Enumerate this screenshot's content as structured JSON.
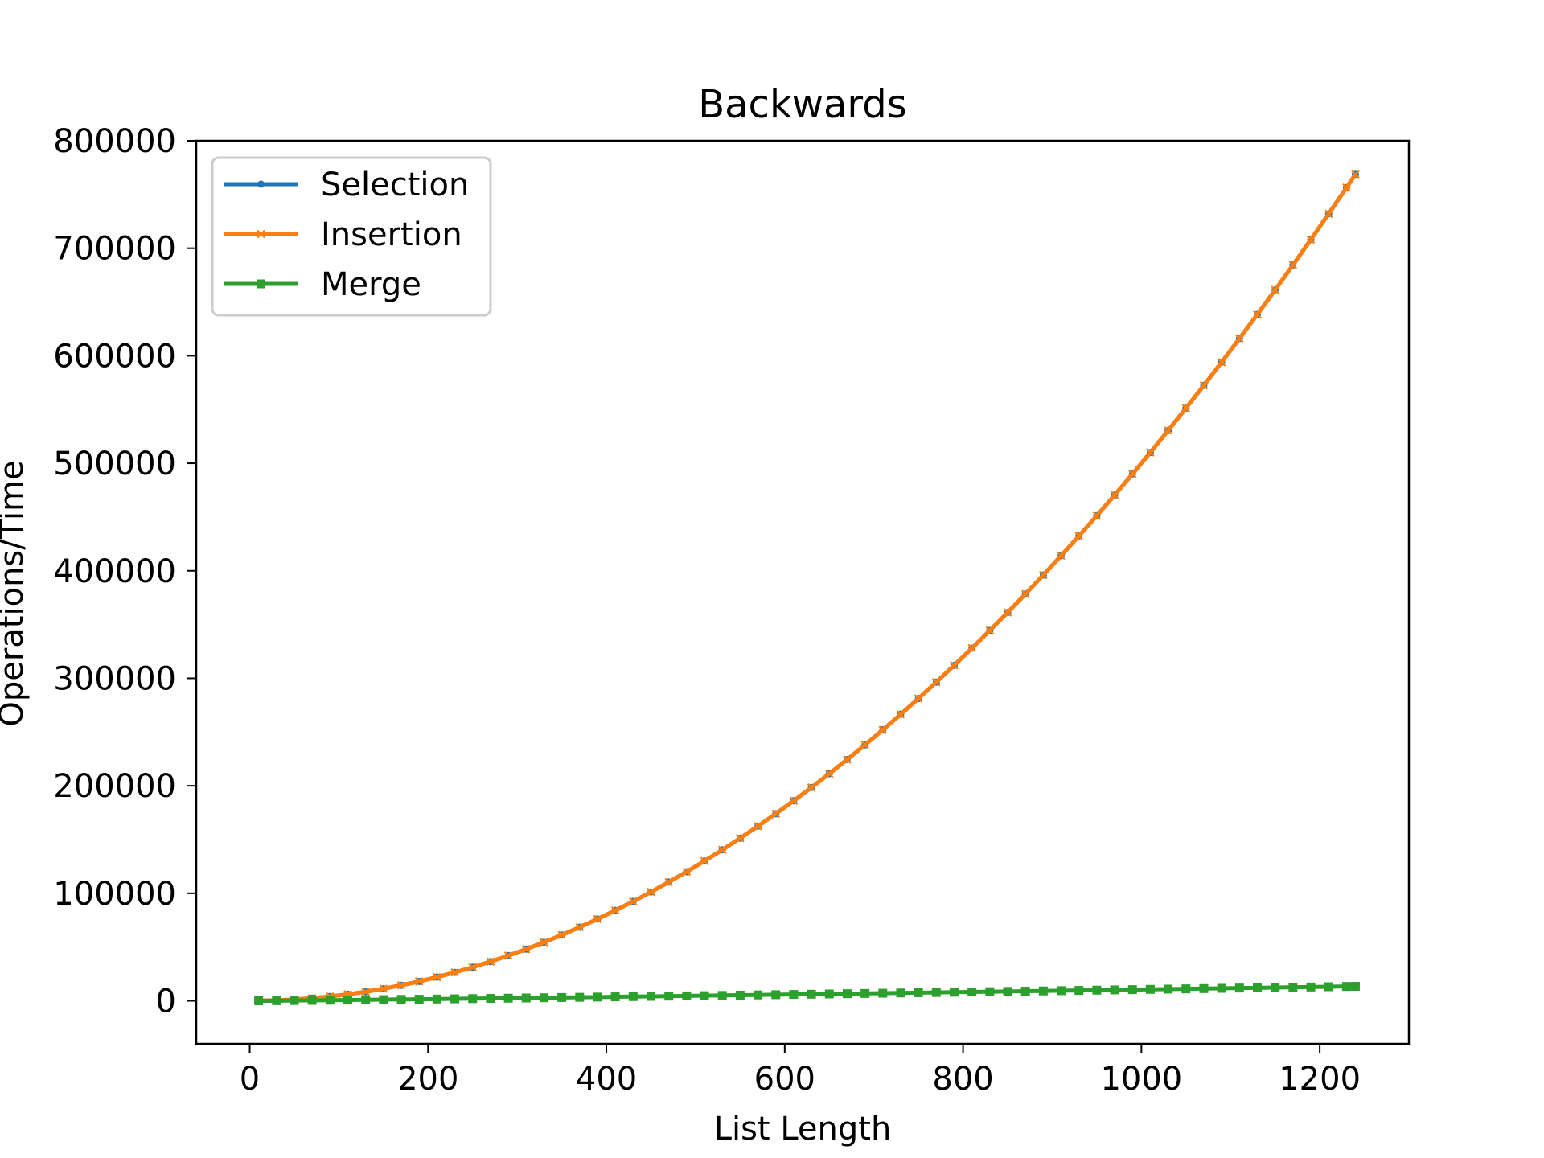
{
  "chart_data": {
    "type": "line",
    "title": "Backwards",
    "xlabel": "List Length",
    "ylabel": "Operations/Time",
    "xlim": [
      -60,
      1300
    ],
    "ylim": [
      -40000,
      800000
    ],
    "xticks": [
      0,
      200,
      400,
      600,
      800,
      1000,
      1200
    ],
    "yticks": [
      0,
      100000,
      200000,
      300000,
      400000,
      500000,
      600000,
      700000,
      800000
    ],
    "grid": false,
    "legend_position": "upper-left",
    "x": [
      10,
      30,
      50,
      70,
      90,
      110,
      130,
      150,
      170,
      190,
      210,
      230,
      250,
      270,
      290,
      310,
      330,
      350,
      370,
      390,
      410,
      430,
      450,
      470,
      490,
      510,
      530,
      550,
      570,
      590,
      610,
      630,
      650,
      670,
      690,
      710,
      730,
      750,
      770,
      790,
      810,
      830,
      850,
      870,
      890,
      910,
      930,
      950,
      970,
      990,
      1010,
      1030,
      1050,
      1070,
      1090,
      1110,
      1130,
      1150,
      1170,
      1190,
      1210,
      1230,
      1240
    ],
    "series": [
      {
        "name": "Selection",
        "color": "#1f77b4",
        "marker": "circle",
        "values": [
          50,
          450,
          1250,
          2450,
          4050,
          6050,
          8450,
          11250,
          14450,
          18050,
          22050,
          26450,
          31250,
          36450,
          42050,
          48050,
          54450,
          61250,
          68450,
          76050,
          84050,
          92450,
          101250,
          110450,
          120050,
          130050,
          140450,
          151250,
          162450,
          174050,
          186050,
          198450,
          211250,
          224450,
          238050,
          252050,
          266450,
          281250,
          296450,
          312050,
          328050,
          344450,
          361250,
          378450,
          396050,
          414050,
          432450,
          451250,
          470450,
          490050,
          510050,
          530450,
          551250,
          572450,
          594050,
          616050,
          638450,
          661250,
          684450,
          708050,
          732050,
          756450,
          768800
        ]
      },
      {
        "name": "Insertion",
        "color": "#ff7f0e",
        "marker": "x",
        "values": [
          50,
          450,
          1250,
          2450,
          4050,
          6050,
          8450,
          11250,
          14450,
          18050,
          22050,
          26450,
          31250,
          36450,
          42050,
          48050,
          54450,
          61250,
          68450,
          76050,
          84050,
          92450,
          101250,
          110450,
          120050,
          130050,
          140450,
          151250,
          162450,
          174050,
          186050,
          198450,
          211250,
          224450,
          238050,
          252050,
          266450,
          281250,
          296450,
          312050,
          328050,
          344450,
          361250,
          378450,
          396050,
          414050,
          432450,
          451250,
          470450,
          490050,
          510050,
          530450,
          551250,
          572450,
          594050,
          616050,
          638450,
          661250,
          684450,
          708050,
          732050,
          756450,
          768800
        ]
      },
      {
        "name": "Merge",
        "color": "#2ca02c",
        "marker": "square",
        "values": [
          35,
          150,
          280,
          430,
          580,
          750,
          920,
          1100,
          1280,
          1460,
          1650,
          1850,
          2040,
          2240,
          2440,
          2650,
          2860,
          3070,
          3280,
          3490,
          3710,
          3920,
          4140,
          4360,
          4580,
          4800,
          5020,
          5250,
          5470,
          5700,
          5930,
          6160,
          6390,
          6620,
          6850,
          7080,
          7310,
          7550,
          7780,
          8020,
          8250,
          8490,
          8730,
          8960,
          9200,
          9440,
          9680,
          9920,
          10160,
          10400,
          10650,
          10890,
          11130,
          11380,
          11620,
          11870,
          12110,
          12360,
          12600,
          12850,
          13100,
          13350,
          13470
        ]
      }
    ]
  }
}
